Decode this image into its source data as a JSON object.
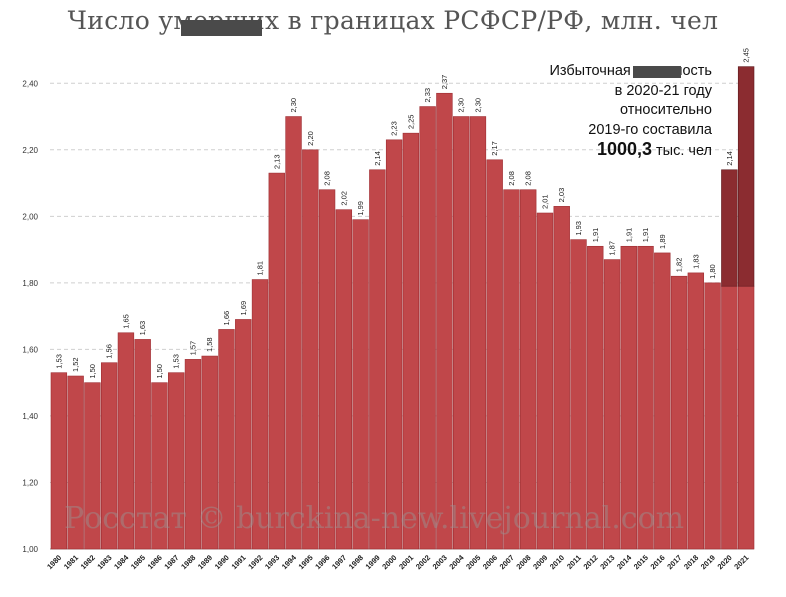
{
  "title": "Число умерших в границах РСФСР/РФ, млн. чел",
  "annotation": {
    "lines": [
      "Избыточная смертность",
      "в 2020-21 году",
      "относительно",
      "2019-го составила"
    ],
    "value": "1000,3",
    "unit": " тыс. чел"
  },
  "watermark": "Росстат © burckina-new.livejournal.com",
  "colors": {
    "bar": "#c0474a",
    "bar_border": "#9e2e33",
    "excess": "#8b2c30",
    "grid": "#cfcfcf"
  },
  "chart_data": {
    "type": "bar",
    "categories": [
      "1980",
      "1981",
      "1982",
      "1983",
      "1984",
      "1985",
      "1986",
      "1987",
      "1988",
      "1989",
      "1990",
      "1991",
      "1992",
      "1993",
      "1994",
      "1995",
      "1996",
      "1997",
      "1998",
      "1999",
      "2000",
      "2001",
      "2002",
      "2003",
      "2004",
      "2005",
      "2006",
      "2007",
      "2008",
      "2009",
      "2010",
      "2011",
      "2012",
      "2013",
      "2014",
      "2015",
      "2016",
      "2017",
      "2018",
      "2019",
      "2020",
      "2021"
    ],
    "series": [
      {
        "values": [
          1.53,
          1.52,
          1.5,
          1.56,
          1.65,
          1.63,
          1.5,
          1.53,
          1.57,
          1.58,
          1.66,
          1.69,
          1.81,
          2.13,
          2.3,
          2.2,
          2.08,
          2.02,
          1.99,
          2.14,
          2.23,
          2.25,
          2.33,
          2.37,
          2.3,
          2.3,
          2.17,
          2.08,
          2.08,
          2.01,
          2.03,
          1.93,
          1.91,
          1.87,
          1.91,
          1.91,
          1.89,
          1.82,
          1.83,
          1.8,
          2.14,
          2.45
        ]
      }
    ],
    "baseline_2019": 1.8,
    "data_labels": [
      "1,53",
      "1,52",
      "1,50",
      "1,56",
      "1,65",
      "1,63",
      "1,50",
      "1,53",
      "1,57",
      "1,58",
      "1,66",
      "1,69",
      "1,81",
      "2,13",
      "2,30",
      "2,20",
      "2,08",
      "2,02",
      "1,99",
      "2,14",
      "2,23",
      "2,25",
      "2,33",
      "2,37",
      "2,30",
      "2,30",
      "2,17",
      "2,08",
      "2,08",
      "2,01",
      "2,03",
      "1,93",
      "1,91",
      "1,87",
      "1,91",
      "1,91",
      "1,89",
      "1,82",
      "1,83",
      "1,80",
      "2,14",
      "2,45"
    ],
    "yticks": [
      1.0,
      1.2,
      1.4,
      1.6,
      1.8,
      2.0,
      2.2,
      2.4
    ],
    "ytick_labels": [
      "1,00",
      "1,20",
      "1,40",
      "1,60",
      "1,80",
      "2,00",
      "2,20",
      "2,40"
    ],
    "ylim": [
      1.0,
      2.5
    ],
    "grid": true
  }
}
